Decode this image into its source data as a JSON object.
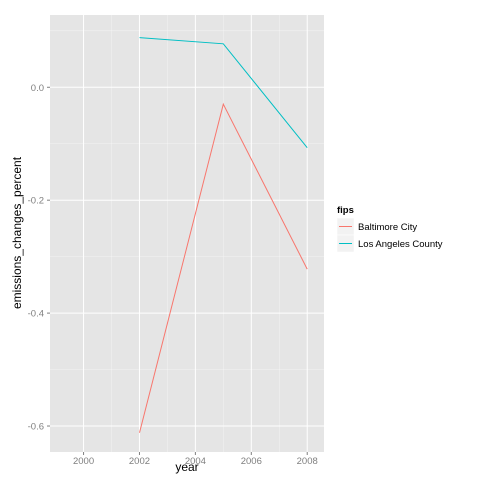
{
  "chart_data": {
    "type": "line",
    "title": "",
    "xlabel": "year",
    "ylabel": "emissions_changes_percent",
    "xlim": [
      1998.8,
      2008.6
    ],
    "ylim": [
      -0.646,
      0.128
    ],
    "x_ticks": [
      2000,
      2002,
      2004,
      2006,
      2008
    ],
    "x_tick_labels": [
      "2000",
      "2002",
      "2004",
      "2006",
      "2008"
    ],
    "y_ticks": [
      0.0,
      -0.2,
      -0.4,
      -0.6
    ],
    "y_tick_labels": [
      "0.0",
      "-0.2",
      "-0.4",
      "-0.6"
    ],
    "grid": true,
    "legend": {
      "title": "fips",
      "placement": "right"
    },
    "series": [
      {
        "name": "Baltimore City",
        "color": "#f8766d",
        "points": [
          {
            "x": 2002,
            "y": -0.612
          },
          {
            "x": 2005,
            "y": -0.03
          },
          {
            "x": 2008,
            "y": -0.322
          }
        ]
      },
      {
        "name": "Los Angeles County",
        "color": "#00bfc4",
        "points": [
          {
            "x": 2002,
            "y": 0.088
          },
          {
            "x": 2005,
            "y": 0.077
          },
          {
            "x": 2008,
            "y": -0.107
          }
        ]
      }
    ],
    "panel_background": "#e5e5e5",
    "gridline_color": "#ffffff"
  }
}
